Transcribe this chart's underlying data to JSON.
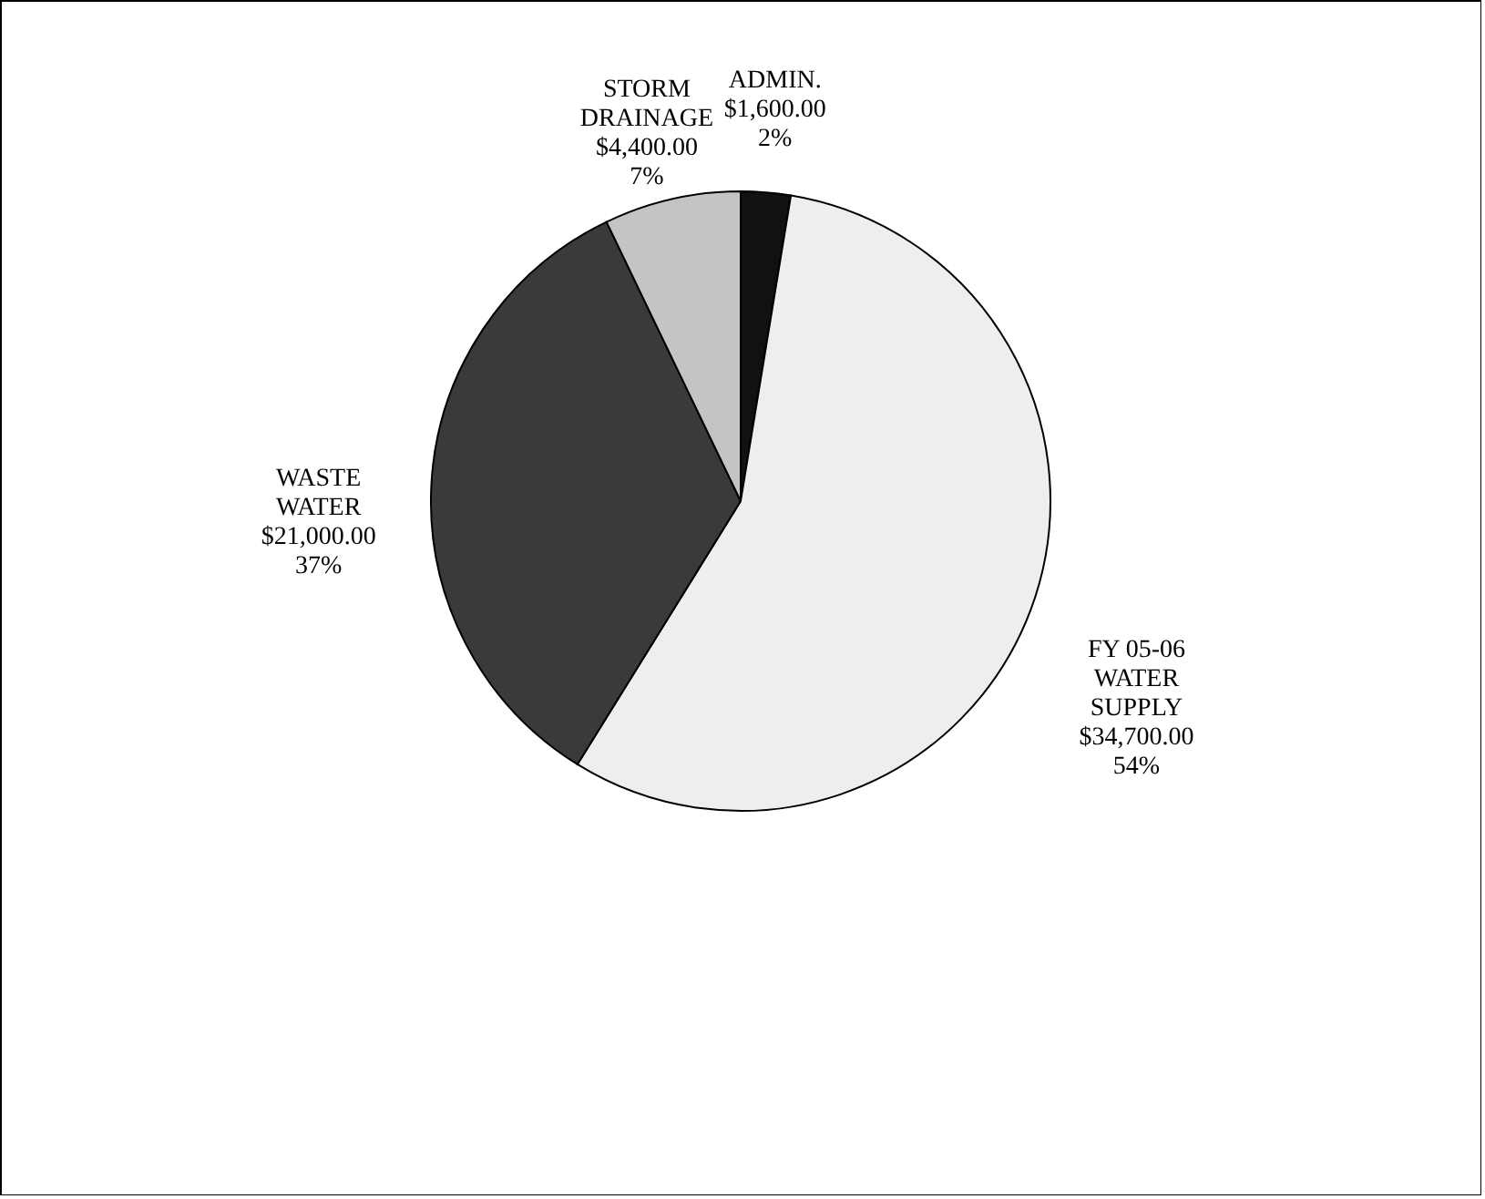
{
  "chart_data": {
    "type": "pie",
    "categories": [
      "ADMIN.",
      "FY 05-06\nWATER\nSUPPLY",
      "WASTE\nWATER",
      "STORM\nDRAINAGE"
    ],
    "values": [
      1600,
      34700,
      21000,
      4400
    ],
    "value_labels": [
      "$1,600.00\n2%",
      "$34,700.00\n54%",
      "$21,000.00\n37%",
      "$4,400.00\n7%"
    ],
    "colors": [
      "#111111",
      "#eeeeee",
      "#3a3a3a",
      "#c4c4c4"
    ]
  }
}
